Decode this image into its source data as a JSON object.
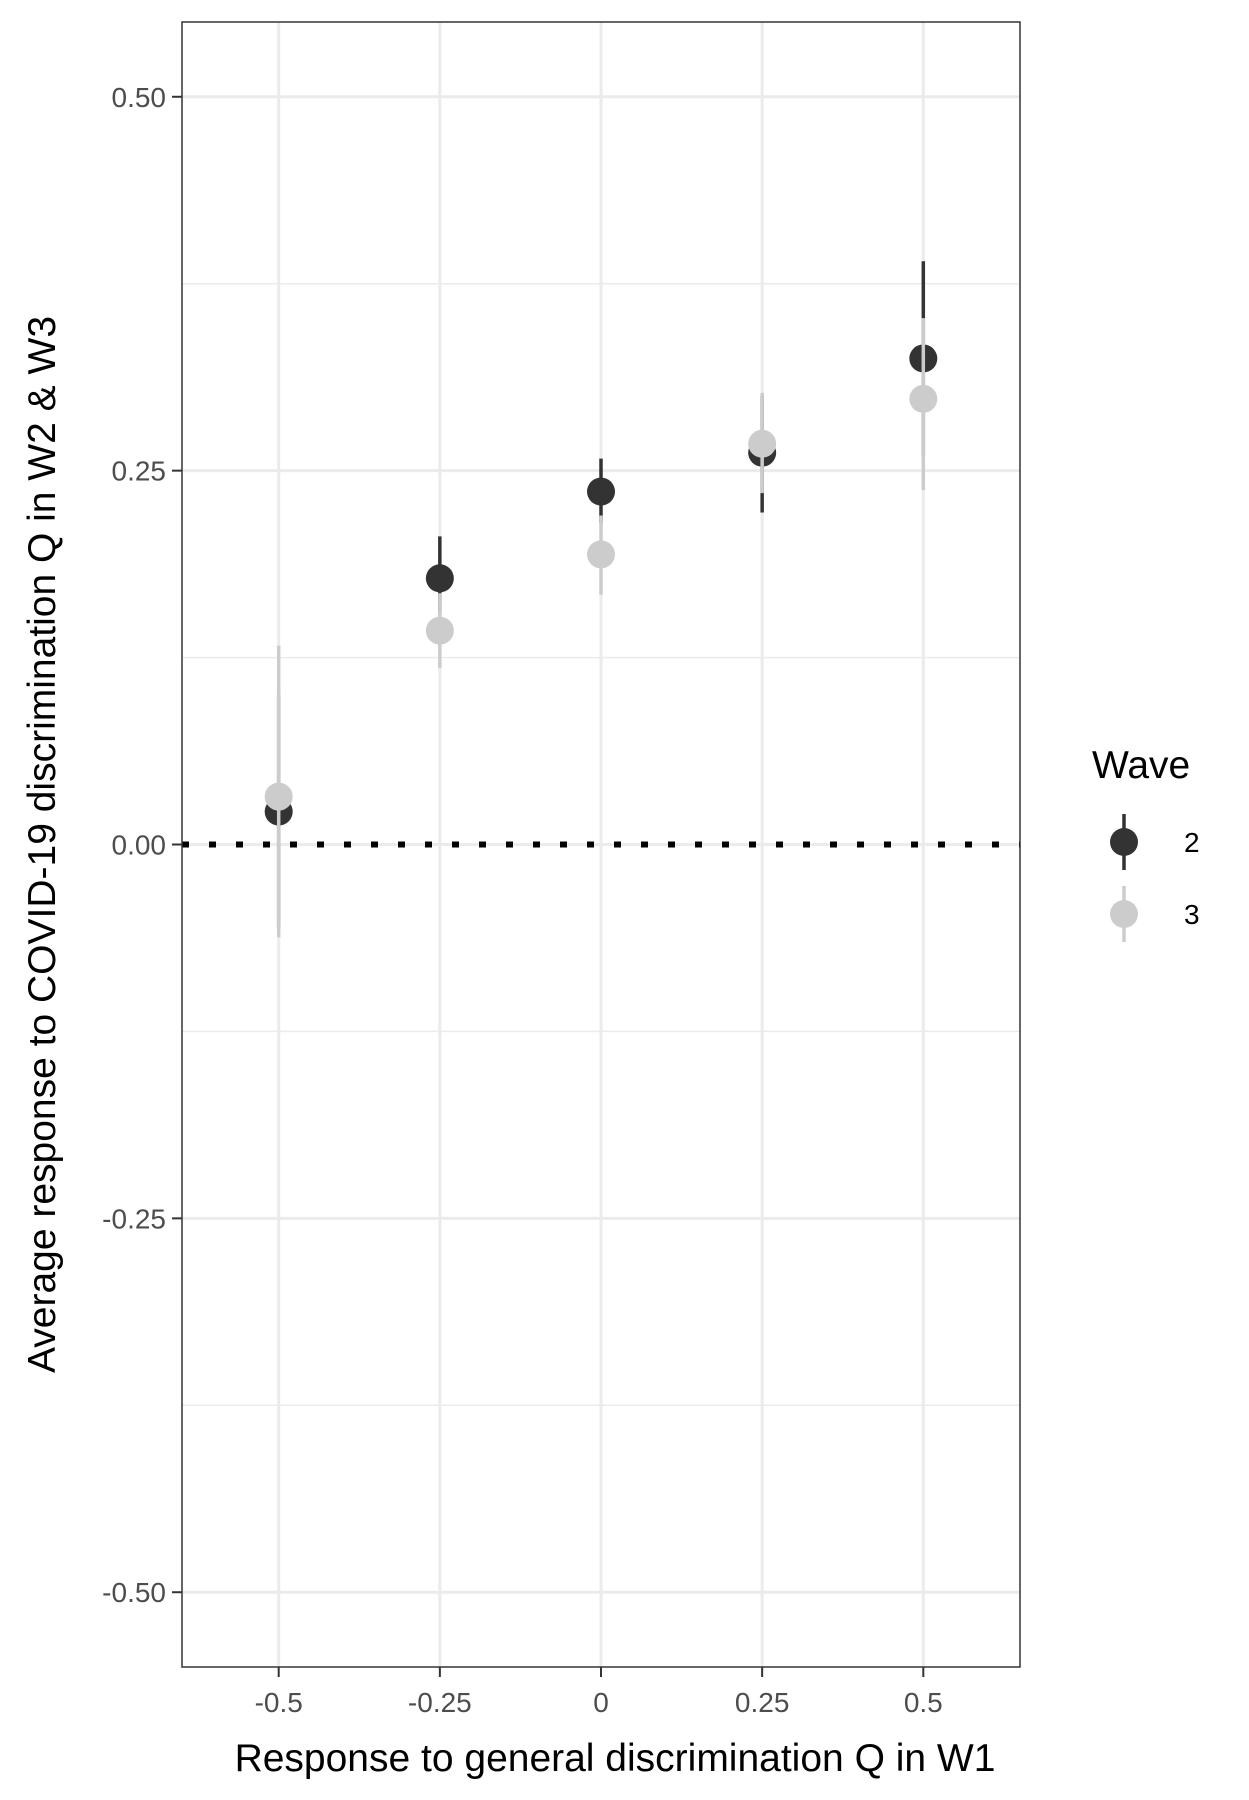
{
  "chart_data": {
    "type": "scatter",
    "xlabel": "Response to general discrimination Q in W1",
    "ylabel": "Average response to COVID-19 discrimination Q in W2 & W3",
    "x_ticks": [
      "-0.5",
      "-0.25",
      "0",
      "0.25",
      "0.5"
    ],
    "x_tick_values": [
      -0.5,
      -0.25,
      0,
      0.25,
      0.5
    ],
    "y_ticks": [
      "-0.50",
      "-0.25",
      "0.00",
      "0.25",
      "0.50"
    ],
    "y_tick_values": [
      -0.5,
      -0.25,
      0,
      0.25,
      0.5
    ],
    "xlim": [
      -0.65,
      0.65
    ],
    "ylim": [
      -0.55,
      0.55
    ],
    "grid": true,
    "reference_line": {
      "y": 0,
      "style": "dotted"
    },
    "legend": {
      "title": "Wave",
      "position": "right"
    },
    "series": [
      {
        "name": "2",
        "color": "#333333",
        "x": [
          -0.5,
          -0.25,
          0,
          0.25,
          0.5
        ],
        "y": [
          0.022,
          0.178,
          0.236,
          0.262,
          0.325
        ],
        "ci_low": [
          -0.055,
          0.155,
          0.215,
          0.222,
          0.26
        ],
        "ci_high": [
          0.1,
          0.206,
          0.258,
          0.3,
          0.39
        ]
      },
      {
        "name": "3",
        "color": "#cccccc",
        "x": [
          -0.5,
          -0.25,
          0,
          0.25,
          0.5
        ],
        "y": [
          0.032,
          0.143,
          0.194,
          0.268,
          0.298
        ],
        "ci_low": [
          -0.062,
          0.118,
          0.167,
          0.235,
          0.237
        ],
        "ci_high": [
          0.133,
          0.168,
          0.22,
          0.302,
          0.352
        ]
      }
    ]
  }
}
